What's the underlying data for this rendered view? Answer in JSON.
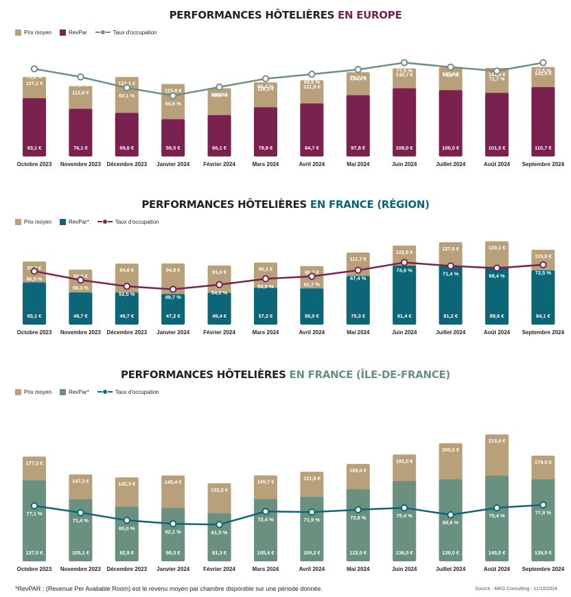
{
  "colors": {
    "tan": "#B8A17A",
    "europe_revpar": "#7A2150",
    "europe_line": "#6E8E85",
    "region_revpar": "#0C6677",
    "region_line": "#7A2150",
    "idf_revpar": "#6A9180",
    "idf_line": "#0C6677",
    "title_dark": "#1F1F1F"
  },
  "footnote": "*RevPAR : (Revenue Per Available Room) est le revenu moyen par chambre disponible sur une période donnée.",
  "source": "Source : MKG Consulting - 11/10/2024",
  "chart_data": [
    {
      "type": "bar",
      "title_prefix": "PERFORMANCES HÔTELIÈRES ",
      "title_accent": "EN EUROPE",
      "accent_color": "#7A2150",
      "legend": {
        "price": "Prix moyen",
        "revpar": "RevPar",
        "occupancy": "Taux d'occupation"
      },
      "categories": [
        "Octobre 2023",
        "Novembre 2023",
        "Décembre 2023",
        "Janvier 2024",
        "Février 2024",
        "Mars 2024",
        "Avril 2024",
        "Mai 2024",
        "Juin 2024",
        "Juillet 2024",
        "Août 2024",
        "Septembre 2024"
      ],
      "series": [
        {
          "name": "Prix moyen",
          "values": [
            127.1,
            112.6,
            127.1,
            115.8,
            109.0,
            118.3,
            121.9,
            134.6,
            140.7,
            142.4,
            141.5,
            142.9
          ],
          "labels": [
            "127,1 €",
            "112,6 €",
            "127,1 €",
            "115,8 €",
            "109,0 €",
            "118,3 €",
            "121,9 €",
            "134,6 €",
            "140,7 €",
            "142,4 €",
            "141,5 €",
            "142,9 €"
          ]
        },
        {
          "name": "RevPar",
          "values": [
            93.1,
            76.1,
            69.6,
            59.5,
            66.1,
            78.6,
            84.7,
            97.8,
            109.0,
            106.0,
            101.5,
            110.7
          ],
          "labels": [
            "93,1 €",
            "76,1 €",
            "69,6 €",
            "59,5 €",
            "66,1 €",
            "78,6 €",
            "84,7 €",
            "97,8 €",
            "109,0 €",
            "106,0 €",
            "101,5 €",
            "110,7 €"
          ]
        },
        {
          "name": "Taux d'occupation",
          "values": [
            73.2,
            67.6,
            60.1,
            54.6,
            60.6,
            66.4,
            69.5,
            72.7,
            77.5,
            74.4,
            71.7,
            77.5
          ],
          "labels": [
            "73,2 %",
            "67,6 %",
            "60,1 %",
            "54,6 %",
            "60,6 %",
            "66,4 %",
            "69,5 %",
            "72,7 %",
            "77,5 %",
            "74,4 %",
            "71,7 %",
            "77,5 %"
          ]
        }
      ]
    },
    {
      "type": "bar",
      "title_prefix": "PERFORMANCES HÔTELIÈRES ",
      "title_accent": "EN FRANCE (RÉGION)",
      "accent_color": "#0C6677",
      "legend": {
        "price": "Prix moyen",
        "revpar": "RevPar*",
        "occupancy": "Taux d'occupation"
      },
      "categories": [
        "Octobre 2023",
        "Novembre 2023",
        "Décembre 2023",
        "Janvier 2024",
        "Février 2024",
        "Mars 2024",
        "Avril 2024",
        "Mai 2024",
        "Juin 2024",
        "Juillet 2024",
        "Août 2024",
        "Septembre 2024"
      ],
      "series": [
        {
          "name": "Prix moyen",
          "values": [
            97.8,
            85.3,
            94.6,
            94.8,
            91.6,
            96.1,
            90.7,
            111.7,
            122.5,
            127.6,
            129.1,
            115.9
          ],
          "labels": [
            "97,8 €",
            "85,3 €",
            "94,6 €",
            "94,8 €",
            "91,6 €",
            "96,1 €",
            "90,7 €",
            "111,7 €",
            "122,5 €",
            "127,6 €",
            "129,1 €",
            "115,9 €"
          ]
        },
        {
          "name": "RevPar*",
          "values": [
            65.1,
            49.7,
            49.7,
            47.2,
            49.4,
            57.2,
            56.0,
            75.3,
            91.4,
            91.2,
            89.6,
            84.1
          ],
          "labels": [
            "65,1 €",
            "49,7 €",
            "49,7 €",
            "47,2 €",
            "49,4 €",
            "57,2 €",
            "56,0 €",
            "75,3 €",
            "91,4 €",
            "91,2 €",
            "89,6 €",
            "84,1 €"
          ]
        },
        {
          "name": "Taux d'occupation",
          "values": [
            66.5,
            58.3,
            52.5,
            49.7,
            54.0,
            59.5,
            61.7,
            67.4,
            74.6,
            71.4,
            69.4,
            72.5
          ],
          "labels": [
            "66,5 %",
            "58,3 %",
            "52,5 %",
            "49,7 %",
            "54,0 %",
            "59,5 %",
            "61,7 %",
            "67,4 %",
            "74,6 %",
            "71,4 %",
            "69,4 %",
            "72,5 %"
          ]
        }
      ]
    },
    {
      "type": "bar",
      "title_prefix": "PERFORMANCES HÔTELIÈRES ",
      "title_accent": "EN FRANCE (ÎLE-DE-FRANCE)",
      "accent_color": "#6A9180",
      "legend": {
        "price": "Prix moyen",
        "revpar": "RevPar*",
        "occupancy": "Taux d'occupation"
      },
      "categories": [
        "Octobre 2023",
        "Novembre 2023",
        "Décembre 2023",
        "Janvier 2024",
        "Février 2024",
        "Mars 2024",
        "Avril 2024",
        "Mai 2024",
        "Juin 2024",
        "Juillet 2024",
        "Août 2024",
        "Septembre 2024"
      ],
      "series": [
        {
          "name": "Prix moyen",
          "values": [
            177.5,
            147.3,
            142.3,
            145.4,
            132.2,
            145.7,
            151.8,
            165.0,
            181.0,
            200.0,
            215.0,
            179.0
          ],
          "labels": [
            "177,5 €",
            "147,3 €",
            "142,3 €",
            "145,4 €",
            "132,2 €",
            "145,7 €",
            "151,8 €",
            "165,0 €",
            "181,0 €",
            "200,0 €",
            "215,0 €",
            "179,0 €"
          ]
        },
        {
          "name": "RevPar*",
          "values": [
            137.0,
            105.1,
            92.5,
            90.3,
            81.3,
            105.4,
            109.2,
            122.0,
            136.0,
            139.0,
            145.0,
            139.0
          ],
          "labels": [
            "137,0 €",
            "105,1 €",
            "92,5 €",
            "90,3 €",
            "81,3 €",
            "105,4 €",
            "109,2 €",
            "122,0 €",
            "136,0 €",
            "139,0 €",
            "145,0 €",
            "139,0 €"
          ]
        },
        {
          "name": "Taux d'occupation",
          "values": [
            77.1,
            71.4,
            65.0,
            62.1,
            61.5,
            72.4,
            71.9,
            73.8,
            75.4,
            69.6,
            75.4,
            77.9
          ],
          "labels": [
            "77,1 %",
            "71,4 %",
            "65,0 %",
            "62,1 %",
            "61,5 %",
            "72,4 %",
            "71,9 %",
            "73,8 %",
            "75,4 %",
            "69,6 %",
            "75,4 %",
            "77,9 %"
          ]
        }
      ]
    }
  ]
}
